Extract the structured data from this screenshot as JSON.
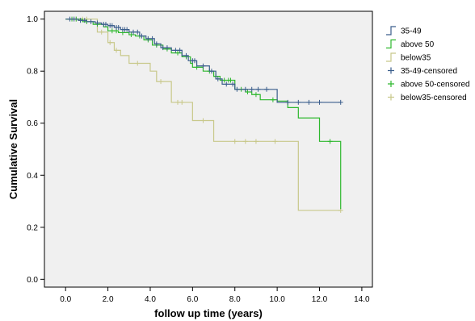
{
  "chart_data": {
    "type": "line",
    "chart_kind": "kaplan-meier step",
    "xlabel": "follow up time (years)",
    "ylabel": "Cumulative Survival",
    "xlim": [
      -1.0,
      14.5
    ],
    "ylim": [
      -0.03,
      1.03
    ],
    "x_ticks": [
      0.0,
      2.0,
      4.0,
      6.0,
      8.0,
      10.0,
      12.0,
      14.0
    ],
    "x_tick_labels": [
      "0.0",
      "2.0",
      "4.0",
      "6.0",
      "8.0",
      "10.0",
      "12.0",
      "14.0"
    ],
    "y_ticks": [
      0.0,
      0.2,
      0.4,
      0.6,
      0.8,
      1.0
    ],
    "y_tick_labels": [
      "0.0",
      "0.2",
      "0.4",
      "0.6",
      "0.8",
      "1.0"
    ],
    "grid": false,
    "legend_position": "right",
    "plot_background": "#f0f0f0",
    "series": [
      {
        "name": "35-49",
        "censored_label": "35-49-censored",
        "color": "#3b5e8c",
        "steps": [
          [
            0,
            1.0
          ],
          [
            0.6,
            0.995
          ],
          [
            1.0,
            0.99
          ],
          [
            1.4,
            0.985
          ],
          [
            1.7,
            0.98
          ],
          [
            2.0,
            0.975
          ],
          [
            2.3,
            0.968
          ],
          [
            2.6,
            0.96
          ],
          [
            3.0,
            0.95
          ],
          [
            3.5,
            0.935
          ],
          [
            3.8,
            0.925
          ],
          [
            4.2,
            0.905
          ],
          [
            4.5,
            0.89
          ],
          [
            5.0,
            0.88
          ],
          [
            5.5,
            0.86
          ],
          [
            5.8,
            0.84
          ],
          [
            6.2,
            0.82
          ],
          [
            6.8,
            0.8
          ],
          [
            7.1,
            0.77
          ],
          [
            7.4,
            0.75
          ],
          [
            8.0,
            0.73
          ],
          [
            10.0,
            0.68
          ],
          [
            13.0,
            0.68
          ]
        ],
        "censored": [
          [
            0.2,
            1.0
          ],
          [
            0.4,
            1.0
          ],
          [
            0.7,
            0.995
          ],
          [
            0.9,
            0.995
          ],
          [
            1.2,
            0.99
          ],
          [
            1.5,
            0.985
          ],
          [
            1.8,
            0.98
          ],
          [
            1.9,
            0.98
          ],
          [
            2.1,
            0.975
          ],
          [
            2.2,
            0.975
          ],
          [
            2.4,
            0.968
          ],
          [
            2.5,
            0.968
          ],
          [
            2.7,
            0.96
          ],
          [
            2.8,
            0.96
          ],
          [
            2.9,
            0.96
          ],
          [
            3.2,
            0.95
          ],
          [
            3.4,
            0.95
          ],
          [
            3.6,
            0.935
          ],
          [
            3.9,
            0.925
          ],
          [
            4.1,
            0.925
          ],
          [
            4.3,
            0.905
          ],
          [
            4.6,
            0.89
          ],
          [
            4.8,
            0.89
          ],
          [
            5.2,
            0.88
          ],
          [
            5.4,
            0.88
          ],
          [
            5.7,
            0.86
          ],
          [
            6.0,
            0.84
          ],
          [
            6.1,
            0.84
          ],
          [
            6.5,
            0.82
          ],
          [
            6.9,
            0.8
          ],
          [
            7.2,
            0.77
          ],
          [
            7.6,
            0.75
          ],
          [
            7.9,
            0.75
          ],
          [
            8.1,
            0.73
          ],
          [
            8.5,
            0.73
          ],
          [
            8.8,
            0.73
          ],
          [
            9.1,
            0.73
          ],
          [
            9.5,
            0.73
          ],
          [
            10.5,
            0.68
          ],
          [
            11.0,
            0.68
          ],
          [
            11.5,
            0.68
          ],
          [
            12.0,
            0.68
          ],
          [
            13.0,
            0.68
          ]
        ]
      },
      {
        "name": "above 50",
        "censored_label": "above 50-censored",
        "color": "#2eb82e",
        "steps": [
          [
            0,
            1.0
          ],
          [
            0.8,
            0.99
          ],
          [
            1.3,
            0.98
          ],
          [
            1.8,
            0.97
          ],
          [
            2.0,
            0.955
          ],
          [
            2.5,
            0.948
          ],
          [
            3.0,
            0.94
          ],
          [
            3.3,
            0.935
          ],
          [
            3.7,
            0.92
          ],
          [
            4.1,
            0.9
          ],
          [
            4.6,
            0.885
          ],
          [
            5.0,
            0.87
          ],
          [
            5.5,
            0.855
          ],
          [
            5.9,
            0.83
          ],
          [
            6.0,
            0.815
          ],
          [
            6.5,
            0.8
          ],
          [
            7.0,
            0.78
          ],
          [
            7.3,
            0.765
          ],
          [
            8.0,
            0.73
          ],
          [
            8.5,
            0.72
          ],
          [
            8.8,
            0.71
          ],
          [
            9.2,
            0.69
          ],
          [
            10.0,
            0.685
          ],
          [
            10.5,
            0.66
          ],
          [
            11.0,
            0.62
          ],
          [
            12.0,
            0.53
          ],
          [
            13.0,
            0.27
          ]
        ],
        "censored": [
          [
            0.3,
            1.0
          ],
          [
            0.5,
            1.0
          ],
          [
            1.0,
            0.99
          ],
          [
            1.5,
            0.98
          ],
          [
            2.2,
            0.955
          ],
          [
            2.4,
            0.955
          ],
          [
            2.7,
            0.948
          ],
          [
            3.1,
            0.94
          ],
          [
            3.5,
            0.935
          ],
          [
            3.9,
            0.92
          ],
          [
            4.3,
            0.9
          ],
          [
            4.8,
            0.885
          ],
          [
            5.3,
            0.87
          ],
          [
            5.7,
            0.855
          ],
          [
            6.2,
            0.815
          ],
          [
            6.8,
            0.8
          ],
          [
            7.1,
            0.78
          ],
          [
            7.5,
            0.765
          ],
          [
            7.7,
            0.765
          ],
          [
            7.8,
            0.765
          ],
          [
            8.3,
            0.73
          ],
          [
            8.6,
            0.72
          ],
          [
            9.0,
            0.71
          ],
          [
            9.8,
            0.69
          ],
          [
            12.5,
            0.53
          ]
        ]
      },
      {
        "name": "below35",
        "censored_label": "below35-censored",
        "color": "#c8c88a",
        "steps": [
          [
            0,
            1.0
          ],
          [
            1.5,
            0.95
          ],
          [
            2.0,
            0.91
          ],
          [
            2.3,
            0.88
          ],
          [
            2.6,
            0.86
          ],
          [
            3.0,
            0.83
          ],
          [
            4.0,
            0.8
          ],
          [
            4.3,
            0.76
          ],
          [
            5.0,
            0.68
          ],
          [
            6.0,
            0.61
          ],
          [
            7.0,
            0.53
          ],
          [
            11.0,
            0.265
          ],
          [
            13.0,
            0.265
          ]
        ],
        "censored": [
          [
            0.5,
            1.0
          ],
          [
            0.8,
            1.0
          ],
          [
            1.0,
            1.0
          ],
          [
            1.7,
            0.95
          ],
          [
            2.1,
            0.91
          ],
          [
            2.4,
            0.88
          ],
          [
            3.4,
            0.83
          ],
          [
            4.5,
            0.76
          ],
          [
            5.3,
            0.68
          ],
          [
            5.5,
            0.68
          ],
          [
            6.5,
            0.61
          ],
          [
            8.0,
            0.53
          ],
          [
            8.5,
            0.53
          ],
          [
            9.0,
            0.53
          ],
          [
            9.9,
            0.53
          ],
          [
            13.0,
            0.265
          ]
        ]
      }
    ]
  }
}
